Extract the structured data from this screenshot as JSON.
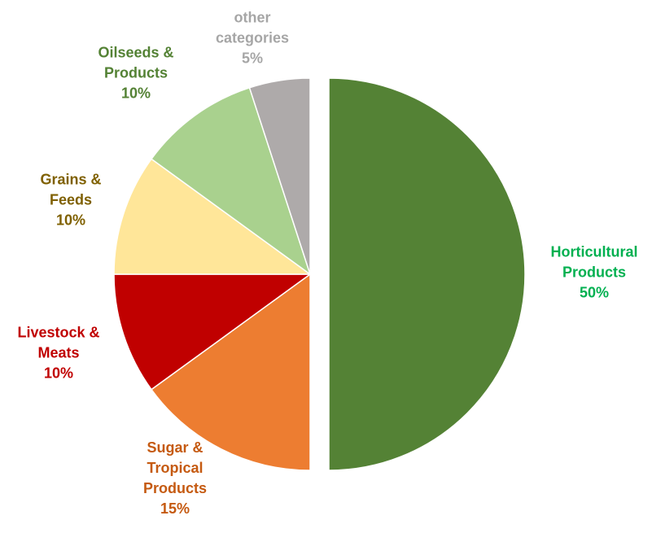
{
  "chart_data": {
    "type": "pie",
    "title": "",
    "slices": [
      {
        "key": "horticultural",
        "label_lines": [
          "Horticultural",
          "Products"
        ],
        "value": 50,
        "percent_label": "50%",
        "color": "#548235",
        "label_color": "#00B050",
        "exploded": true
      },
      {
        "key": "sugar",
        "label_lines": [
          "Sugar &",
          "Tropical",
          "Products"
        ],
        "value": 15,
        "percent_label": "15%",
        "color": "#ED7D31",
        "label_color": "#C55A11",
        "exploded": false
      },
      {
        "key": "livestock",
        "label_lines": [
          "Livestock &",
          "Meats"
        ],
        "value": 10,
        "percent_label": "10%",
        "color": "#C00000",
        "label_color": "#C00000",
        "exploded": false
      },
      {
        "key": "grains",
        "label_lines": [
          "Grains &",
          "Feeds"
        ],
        "value": 10,
        "percent_label": "10%",
        "color": "#FFE699",
        "label_color": "#7F6000",
        "exploded": false
      },
      {
        "key": "oilseeds",
        "label_lines": [
          "Oilseeds &",
          "Products"
        ],
        "value": 10,
        "percent_label": "10%",
        "color": "#A9D18E",
        "label_color": "#548235",
        "exploded": false
      },
      {
        "key": "other",
        "label_lines": [
          "other",
          "categories"
        ],
        "value": 5,
        "percent_label": "5%",
        "color": "#AEAAAA",
        "label_color": "#A6A6A6",
        "exploded": false
      }
    ],
    "start_angle": "12 o'clock",
    "direction": "clockwise",
    "legend": "none"
  }
}
